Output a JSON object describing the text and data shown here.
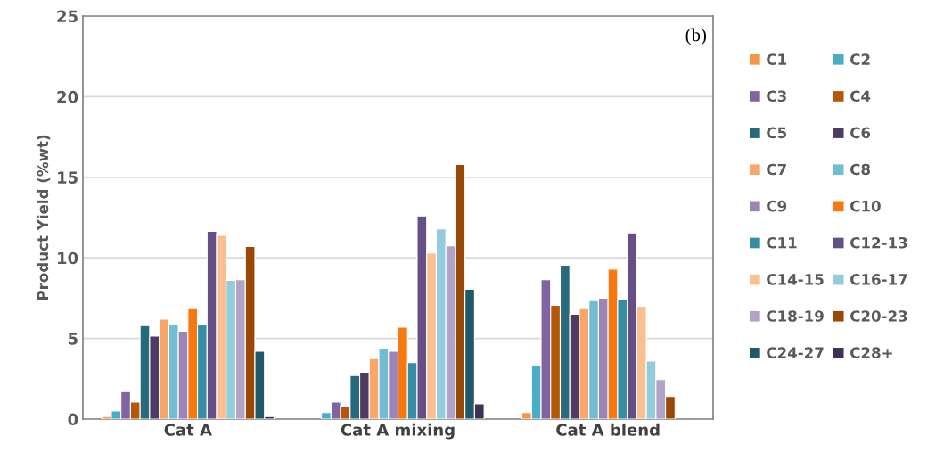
{
  "chart_data": {
    "type": "bar",
    "ylabel": "Product Yield (%wt)",
    "categories": [
      "Cat A",
      "Cat A mixing",
      "Cat A blend"
    ],
    "ylim": [
      0,
      25
    ],
    "yticks": [
      0,
      5,
      10,
      15,
      20,
      25
    ],
    "grid": "y",
    "legend": "right",
    "annotations": [
      "(b)"
    ],
    "series": [
      {
        "name": "C1",
        "color": "#f79646",
        "values": [
          0.15,
          null,
          0.4
        ]
      },
      {
        "name": "C2",
        "color": "#4bacc6",
        "values": [
          0.5,
          0.4,
          3.3
        ]
      },
      {
        "name": "C3",
        "color": "#8064a2",
        "values": [
          1.7,
          1.05,
          8.65
        ]
      },
      {
        "name": "C4",
        "color": "#b65708",
        "values": [
          1.05,
          0.8,
          7.05
        ]
      },
      {
        "name": "C5",
        "color": "#276a7c",
        "values": [
          5.8,
          2.7,
          9.55
        ]
      },
      {
        "name": "C6",
        "color": "#4d3b62",
        "values": [
          5.15,
          2.9,
          6.5
        ]
      },
      {
        "name": "C7",
        "color": "#f9a66a",
        "values": [
          6.2,
          3.75,
          6.9
        ]
      },
      {
        "name": "C8",
        "color": "#71bdd1",
        "values": [
          5.85,
          4.4,
          7.35
        ]
      },
      {
        "name": "C9",
        "color": "#9c85b6",
        "values": [
          5.45,
          4.2,
          7.5
        ]
      },
      {
        "name": "C10",
        "color": "#f67810",
        "values": [
          6.9,
          5.7,
          9.3
        ]
      },
      {
        "name": "C11",
        "color": "#358ea6",
        "values": [
          5.85,
          3.5,
          7.4
        ]
      },
      {
        "name": "C12-13",
        "color": "#664f87",
        "values": [
          11.65,
          12.6,
          11.55
        ]
      },
      {
        "name": "C14-15",
        "color": "#fac090",
        "values": [
          11.4,
          10.3,
          7.0
        ]
      },
      {
        "name": "C16-17",
        "color": "#93cddd",
        "values": [
          8.6,
          11.8,
          3.6
        ]
      },
      {
        "name": "C18-19",
        "color": "#b3a2c7",
        "values": [
          8.65,
          10.75,
          2.45
        ]
      },
      {
        "name": "C20-23",
        "color": "#984807",
        "values": [
          10.7,
          15.8,
          1.4
        ]
      },
      {
        "name": "C24-27",
        "color": "#215968",
        "values": [
          4.2,
          8.05,
          null
        ]
      },
      {
        "name": "C28+",
        "color": "#3f3151",
        "values": [
          0.15,
          0.95,
          null
        ]
      }
    ]
  }
}
